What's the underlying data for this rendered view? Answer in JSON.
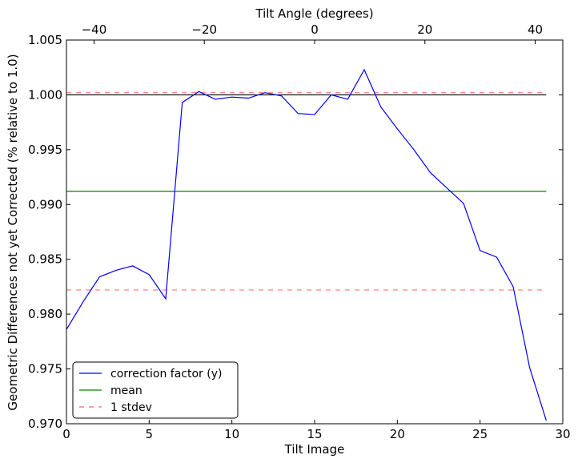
{
  "chart_data": {
    "type": "line",
    "xlabel": "Tilt Image",
    "ylabel": "Geometric Differences not yet Corrected (% relative to 1.0)",
    "top_xlabel": "Tilt Angle (degrees)",
    "xlim": [
      0,
      30
    ],
    "ylim": [
      0.97,
      1.005
    ],
    "top_xlim": [
      -45,
      45
    ],
    "xticks": [
      0,
      5,
      10,
      15,
      20,
      25,
      30
    ],
    "xtick_labels": [
      "0",
      "5",
      "10",
      "15",
      "20",
      "25",
      "30"
    ],
    "yticks": [
      0.97,
      0.975,
      0.98,
      0.985,
      0.99,
      0.995,
      1.0,
      1.005
    ],
    "ytick_labels": [
      "0.970",
      "0.975",
      "0.980",
      "0.985",
      "0.990",
      "0.995",
      "1.000",
      "1.005"
    ],
    "top_xticks": [
      -40,
      -20,
      0,
      20,
      40
    ],
    "top_xtick_labels": [
      "−40",
      "−20",
      "0",
      "20",
      "40"
    ],
    "grid": false,
    "legend_position": "lower-left",
    "series": [
      {
        "name": "correction factor (y)",
        "color": "#0000ff",
        "style": "solid",
        "x": [
          0,
          1,
          2,
          3,
          4,
          5,
          6,
          7,
          8,
          9,
          10,
          11,
          12,
          13,
          14,
          15,
          16,
          17,
          18,
          19,
          20,
          21,
          22,
          23,
          24,
          25,
          26,
          27,
          28,
          29
        ],
        "values": [
          0.9786,
          0.9811,
          0.9834,
          0.984,
          0.9844,
          0.9836,
          0.9814,
          0.9993,
          1.0003,
          0.9996,
          0.9998,
          0.9997,
          1.0002,
          0.9999,
          0.9983,
          0.9982,
          1.0,
          0.9996,
          1.0023,
          0.9989,
          0.9969,
          0.995,
          0.9929,
          0.9915,
          0.9901,
          0.9858,
          0.9852,
          0.9825,
          0.9751,
          0.9703
        ]
      },
      {
        "name": "mean",
        "color": "#008000",
        "style": "solid",
        "x": [
          0,
          29
        ],
        "values": [
          0.9912,
          0.9912
        ]
      },
      {
        "name": "1 stdev",
        "color": "#ff6666",
        "style": "dashed",
        "x": [
          0,
          29
        ],
        "values": [
          1.0002,
          1.0002
        ]
      },
      {
        "name": "",
        "color": "#ff6666",
        "style": "dashed",
        "x": [
          0,
          29
        ],
        "values": [
          0.9822,
          0.9822
        ],
        "legend": false
      },
      {
        "name": "",
        "color": "#000000",
        "style": "solid",
        "x": [
          0,
          29
        ],
        "values": [
          1.0,
          1.0
        ],
        "legend": false
      }
    ]
  }
}
